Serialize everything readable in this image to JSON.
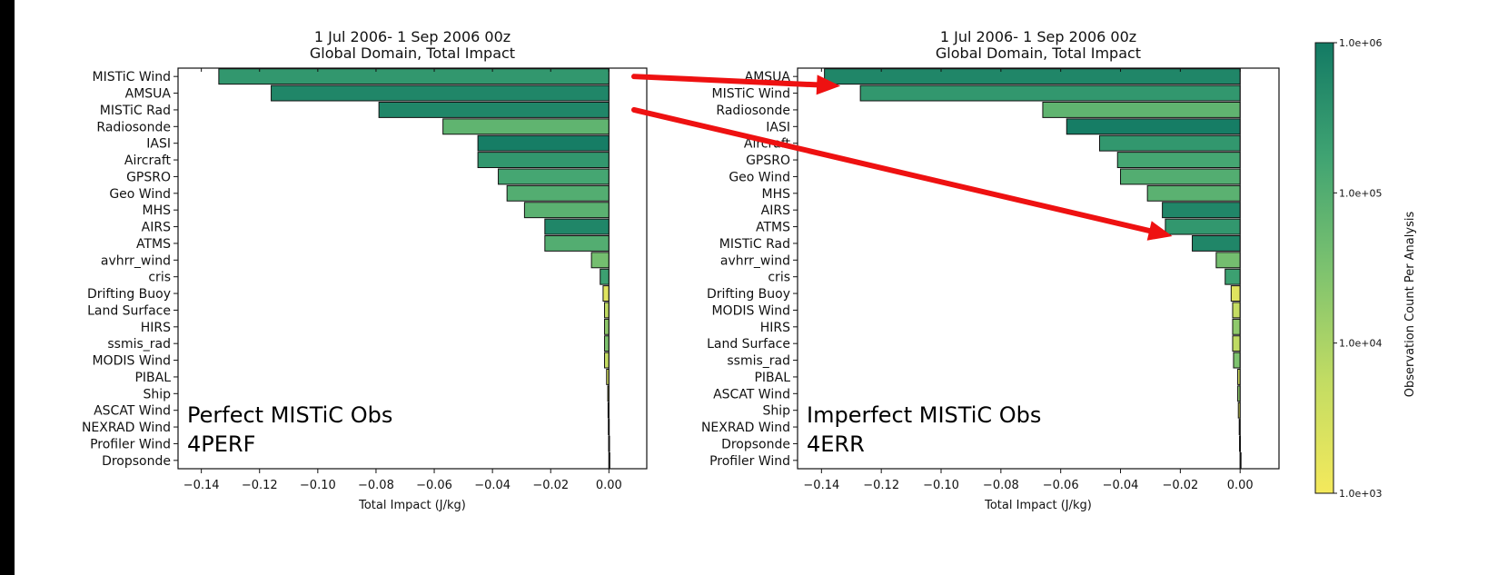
{
  "chart_data": [
    {
      "type": "bar",
      "orientation": "horizontal",
      "title": "1 Jul 2006- 1 Sep 2006 00z",
      "subtitle": "Global Domain, Total Impact",
      "xlabel": "Total Impact (J/kg)",
      "ylabel": "",
      "xlim": [
        -0.148,
        0.013
      ],
      "xticks": [
        -0.14,
        -0.12,
        -0.1,
        -0.08,
        -0.06,
        -0.04,
        -0.02,
        0.0
      ],
      "xtick_labels": [
        "−0.14",
        "−0.12",
        "−0.10",
        "−0.08",
        "−0.06",
        "−0.04",
        "−0.02",
        "0.00"
      ],
      "grid": false,
      "annotation": [
        "Perfect MISTiC Obs",
        "4PERF"
      ],
      "categories": [
        "MISTiC Wind",
        "AMSUA",
        "MISTiC Rad",
        "Radiosonde",
        "IASI",
        "Aircraft",
        "GPSRO",
        "Geo Wind",
        "MHS",
        "AIRS",
        "ATMS",
        "avhrr_wind",
        "cris",
        "Drifting Buoy",
        "Land Surface",
        "HIRS",
        "ssmis_rad",
        "MODIS Wind",
        "PIBAL",
        "Ship",
        "ASCAT Wind",
        "NEXRAD Wind",
        "Profiler Wind",
        "Dropsonde"
      ],
      "values": [
        -0.134,
        -0.116,
        -0.079,
        -0.057,
        -0.045,
        -0.045,
        -0.038,
        -0.035,
        -0.029,
        -0.022,
        -0.022,
        -0.006,
        -0.003,
        -0.002,
        -0.0015,
        -0.0015,
        -0.0015,
        -0.0015,
        -0.0008,
        -0.0004,
        -0.0003,
        -0.0002,
        -0.0001,
        0.0003
      ],
      "obs_counts": [
        300000,
        600000,
        600000,
        70000,
        900000,
        300000,
        150000,
        100000,
        80000,
        600000,
        100000,
        40000,
        200000,
        2000,
        6000,
        20000,
        30000,
        5000,
        3000,
        2000,
        20000,
        2000,
        10000,
        1000
      ]
    },
    {
      "type": "bar",
      "orientation": "horizontal",
      "title": "1 Jul 2006- 1 Sep 2006 00z",
      "subtitle": "Global Domain, Total Impact",
      "xlabel": "Total Impact (J/kg)",
      "ylabel": "",
      "xlim": [
        -0.148,
        0.013
      ],
      "xticks": [
        -0.14,
        -0.12,
        -0.1,
        -0.08,
        -0.06,
        -0.04,
        -0.02,
        0.0
      ],
      "xtick_labels": [
        "−0.14",
        "−0.12",
        "−0.10",
        "−0.08",
        "−0.06",
        "−0.04",
        "−0.02",
        "0.00"
      ],
      "grid": false,
      "annotation": [
        "Imperfect MISTiC Obs",
        "4ERR"
      ],
      "categories": [
        "AMSUA",
        "MISTiC Wind",
        "Radiosonde",
        "IASI",
        "Aircraft",
        "GPSRO",
        "Geo Wind",
        "MHS",
        "AIRS",
        "ATMS",
        "MISTiC Rad",
        "avhrr_wind",
        "cris",
        "Drifting Buoy",
        "MODIS Wind",
        "HIRS",
        "Land Surface",
        "ssmis_rad",
        "PIBAL",
        "ASCAT Wind",
        "Ship",
        "NEXRAD Wind",
        "Dropsonde",
        "Profiler Wind"
      ],
      "values": [
        -0.139,
        -0.127,
        -0.066,
        -0.058,
        -0.047,
        -0.041,
        -0.04,
        -0.031,
        -0.026,
        -0.025,
        -0.016,
        -0.008,
        -0.005,
        -0.003,
        -0.0025,
        -0.0025,
        -0.0025,
        -0.0022,
        -0.0008,
        -0.0008,
        -0.0006,
        -0.0003,
        -0.0002,
        0.0001
      ],
      "obs_counts": [
        600000,
        300000,
        70000,
        900000,
        300000,
        150000,
        100000,
        80000,
        600000,
        300000,
        600000,
        40000,
        200000,
        2000,
        5000,
        20000,
        6000,
        30000,
        3000,
        20000,
        2000,
        2000,
        10000,
        10000
      ]
    }
  ],
  "colorbar": {
    "label": "Observation Count Per Analysis",
    "scale": "log",
    "range": [
      1000,
      1000000
    ],
    "tick_labels": [
      "1.0e+06",
      "1.0e+05",
      "1.0e+04",
      "1.0e+03"
    ],
    "tick_values": [
      1000000,
      100000,
      10000,
      1000
    ],
    "colors": [
      "#f4e95c",
      "#c2dc63",
      "#7cc26f",
      "#3fa372",
      "#137a64"
    ]
  },
  "arrows": {
    "color": "#ee1111",
    "links": [
      {
        "from": "MISTiC Wind",
        "to": "MISTiC Wind"
      },
      {
        "from": "MISTiC Rad",
        "to": "MISTiC Rad"
      }
    ]
  }
}
